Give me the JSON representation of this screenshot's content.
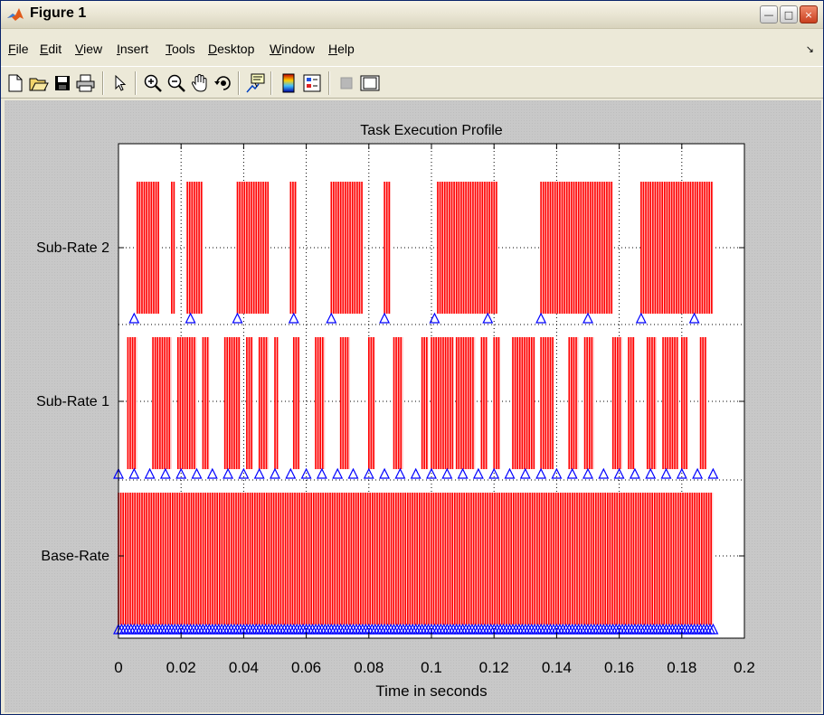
{
  "window": {
    "title": "Figure 1",
    "controls": {
      "minimize": "—",
      "maximize": "□",
      "close": "×"
    }
  },
  "menu": {
    "items": [
      "File",
      "Edit",
      "View",
      "Insert",
      "Tools",
      "Desktop",
      "Window",
      "Help"
    ],
    "overflow_icon": "dock-arrow-icon"
  },
  "toolbar": {
    "tools": [
      "new-figure-icon",
      "open-file-icon",
      "save-icon",
      "print-icon",
      "edit-plot-arrow-icon",
      "zoom-in-icon",
      "zoom-out-icon",
      "pan-hand-icon",
      "rotate-3d-icon",
      "data-cursor-icon",
      "colorbar-icon",
      "legend-icon",
      "hide-plot-tools-icon",
      "show-plot-tools-icon"
    ]
  },
  "colors": {
    "execution": "#ff0000",
    "marker": "#0000ff",
    "axes_bg": "#ffffff",
    "figure_bg": "#c8c8c8"
  },
  "chart_data": {
    "type": "bar",
    "title": "Task Execution Profile",
    "xlabel": "Time in seconds",
    "ylabel": "",
    "xlim": [
      0,
      0.2
    ],
    "xticks": [
      "0",
      "0.02",
      "0.04",
      "0.06",
      "0.08",
      "0.1",
      "0.12",
      "0.14",
      "0.16",
      "0.18",
      "0.2"
    ],
    "yticks": [
      "Base-Rate",
      "Sub-Rate 1",
      "Sub-Rate 2"
    ],
    "grid": true,
    "series": [
      {
        "name": "Base-Rate",
        "marker_period": 0.001,
        "start": 0.0,
        "end": 0.19,
        "bursts": [
          [
            0.0,
            0.19
          ]
        ]
      },
      {
        "name": "Sub-Rate 1",
        "marker_period": 0.005,
        "start": 0.0,
        "end": 0.19,
        "bursts": [
          [
            0.003,
            0.006
          ],
          [
            0.011,
            0.017
          ],
          [
            0.019,
            0.025
          ],
          [
            0.027,
            0.029
          ],
          [
            0.034,
            0.039
          ],
          [
            0.041,
            0.043
          ],
          [
            0.045,
            0.048
          ],
          [
            0.05,
            0.051
          ],
          [
            0.056,
            0.058
          ],
          [
            0.063,
            0.066
          ],
          [
            0.071,
            0.074
          ],
          [
            0.08,
            0.082
          ],
          [
            0.088,
            0.091
          ],
          [
            0.097,
            0.099
          ],
          [
            0.1,
            0.107
          ],
          [
            0.108,
            0.114
          ],
          [
            0.116,
            0.118
          ],
          [
            0.12,
            0.122
          ],
          [
            0.126,
            0.133
          ],
          [
            0.135,
            0.139
          ],
          [
            0.144,
            0.147
          ],
          [
            0.149,
            0.152
          ],
          [
            0.158,
            0.161
          ],
          [
            0.163,
            0.165
          ],
          [
            0.169,
            0.172
          ],
          [
            0.174,
            0.179
          ],
          [
            0.18,
            0.182
          ],
          [
            0.186,
            0.188
          ]
        ]
      },
      {
        "name": "Sub-Rate 2",
        "marker_times": [
          0.005,
          0.023,
          0.038,
          0.056,
          0.068,
          0.085,
          0.101,
          0.118,
          0.135,
          0.15,
          0.167,
          0.184
        ],
        "bursts": [
          [
            0.006,
            0.013
          ],
          [
            0.017,
            0.018
          ],
          [
            0.022,
            0.027
          ],
          [
            0.038,
            0.048
          ],
          [
            0.055,
            0.057
          ],
          [
            0.068,
            0.078
          ],
          [
            0.085,
            0.087
          ],
          [
            0.102,
            0.121
          ],
          [
            0.135,
            0.158
          ],
          [
            0.167,
            0.19
          ]
        ]
      }
    ]
  }
}
